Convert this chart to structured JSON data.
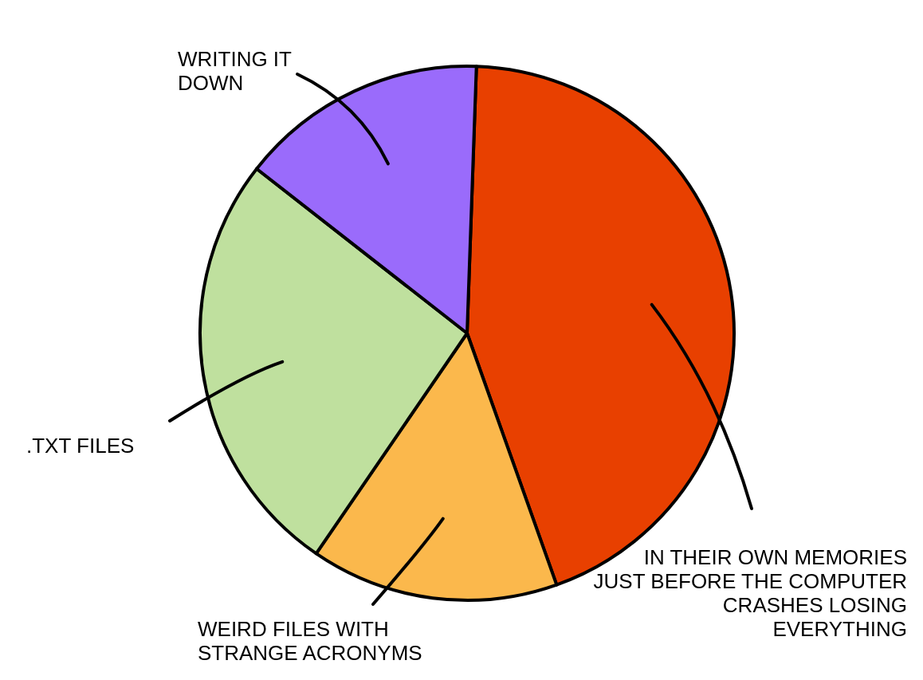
{
  "chart_data": {
    "type": "pie",
    "categories": [
      "IN THEIR OWN MEMORIES JUST BEFORE THE COMPUTER CRASHES LOSING EVERYTHING",
      "WEIRD FILES WITH STRANGE ACRONYMS",
      ".TXT FILES",
      "WRITING IT DOWN"
    ],
    "values": [
      44,
      15,
      26,
      15
    ],
    "colors": [
      "#e84000",
      "#fbb84c",
      "#bfe09e",
      "#9a6bfb"
    ]
  }
}
